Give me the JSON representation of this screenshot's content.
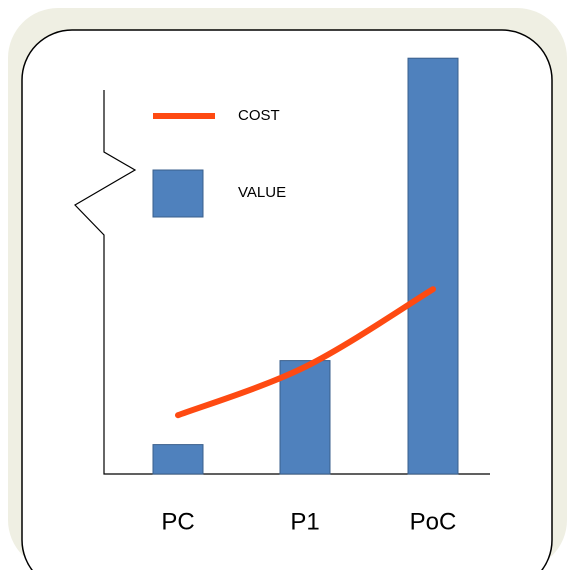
{
  "chart_data": {
    "type": "combo",
    "categories": [
      "PC",
      "P1",
      "PoC"
    ],
    "series": [
      {
        "name": "COST",
        "type": "line",
        "color": "#fe4a12",
        "values": [
          14,
          25.5,
          44
        ]
      },
      {
        "name": "VALUE",
        "type": "bar",
        "color": "#4f81bd",
        "values": [
          7,
          27,
          99
        ]
      }
    ],
    "ylim": [
      0,
      100
    ]
  }
}
